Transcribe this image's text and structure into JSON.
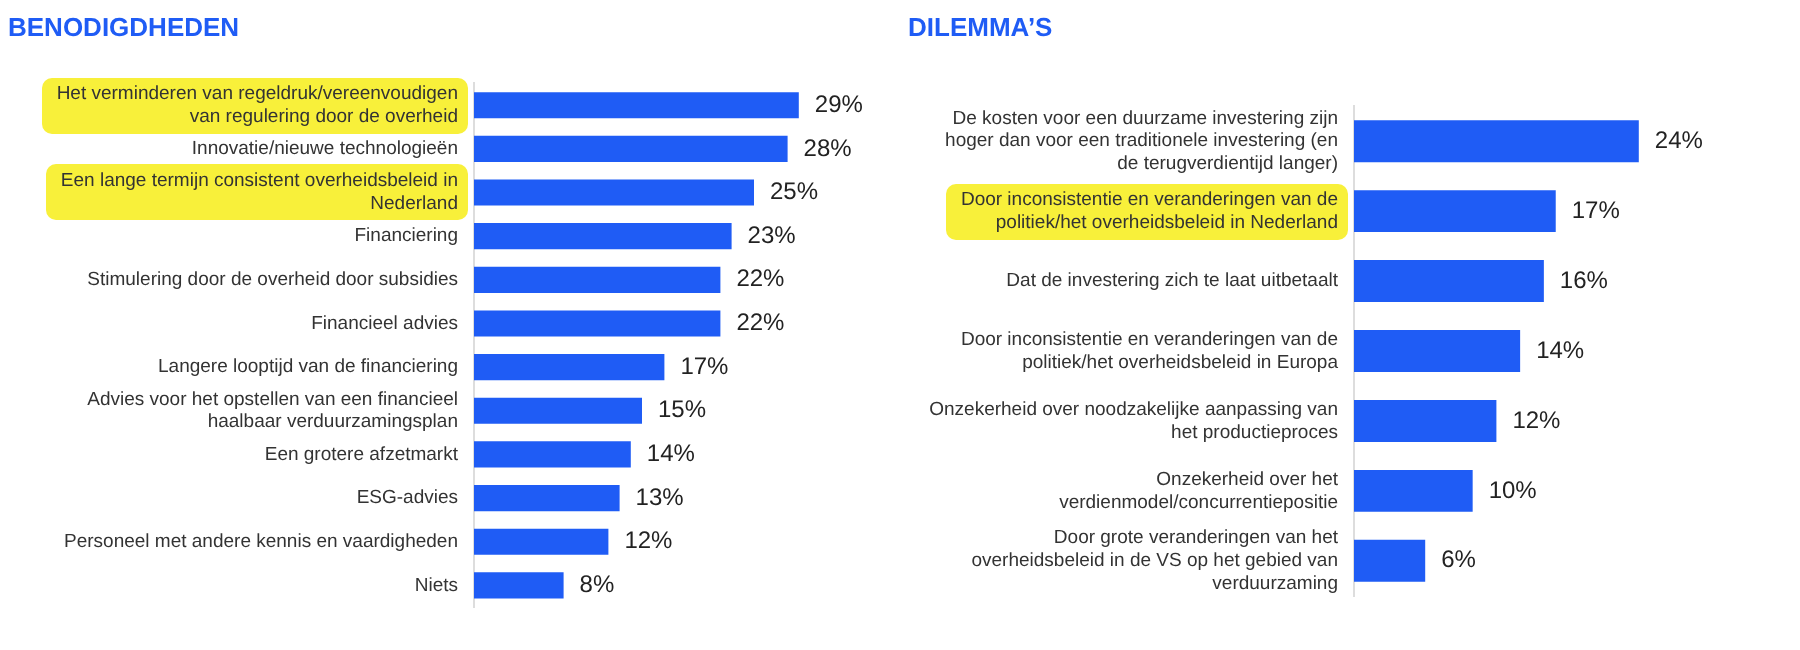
{
  "chart_data": [
    {
      "type": "bar",
      "title": "BENODIGDHEDEN",
      "orientation": "horizontal",
      "grid": false,
      "tick_labels": "y",
      "legend": false,
      "color": "#1f5cf5",
      "categories": [
        "Het verminderen van regeldruk/vereenvoudigen van regulering door de overheid",
        "Innovatie/nieuwe technologieën",
        "Een lange termijn consistent overheidsbeleid in Nederland",
        "Financiering",
        "Stimulering door de overheid door subsidies",
        "Financieel advies",
        "Langere looptijd van de financiering",
        "Advies voor het opstellen van een financieel haalbaar verduurzamingsplan",
        "Een grotere afzetmarkt",
        "ESG-advies",
        "Personeel met andere kennis en vaardigheden",
        "Niets"
      ],
      "values": [
        29,
        28,
        25,
        23,
        22,
        22,
        17,
        15,
        14,
        13,
        12,
        8
      ],
      "value_labels": [
        "29%",
        "28%",
        "25%",
        "23%",
        "22%",
        "22%",
        "17%",
        "15%",
        "14%",
        "13%",
        "12%",
        "8%"
      ]
    },
    {
      "type": "bar",
      "title": "DILEMMA’S",
      "orientation": "horizontal",
      "grid": false,
      "tick_labels": "y",
      "legend": false,
      "color": "#1f5cf5",
      "categories": [
        "De kosten voor een duurzame investering zijn hoger dan voor een traditionele investering (en de terugverdientijd langer)",
        "Door inconsistentie en veranderingen van de politiek/het overheidsbeleid in Nederland",
        "Dat de investering zich te laat uitbetaalt",
        "Door inconsistentie en veranderingen van de politiek/het overheidsbeleid in Europa",
        "Onzekerheid over noodzakelijke aanpassing van het productieproces",
        "Onzekerheid over het verdienmodel/concurrentiepositie",
        "Door grote veranderingen van het overheidsbeleid in de VS op het gebied van verduurzaming"
      ],
      "values": [
        24,
        17,
        16,
        14,
        12,
        10,
        6
      ],
      "value_labels": [
        "24%",
        "17%",
        "16%",
        "14%",
        "12%",
        "10%",
        "6%"
      ]
    }
  ]
}
